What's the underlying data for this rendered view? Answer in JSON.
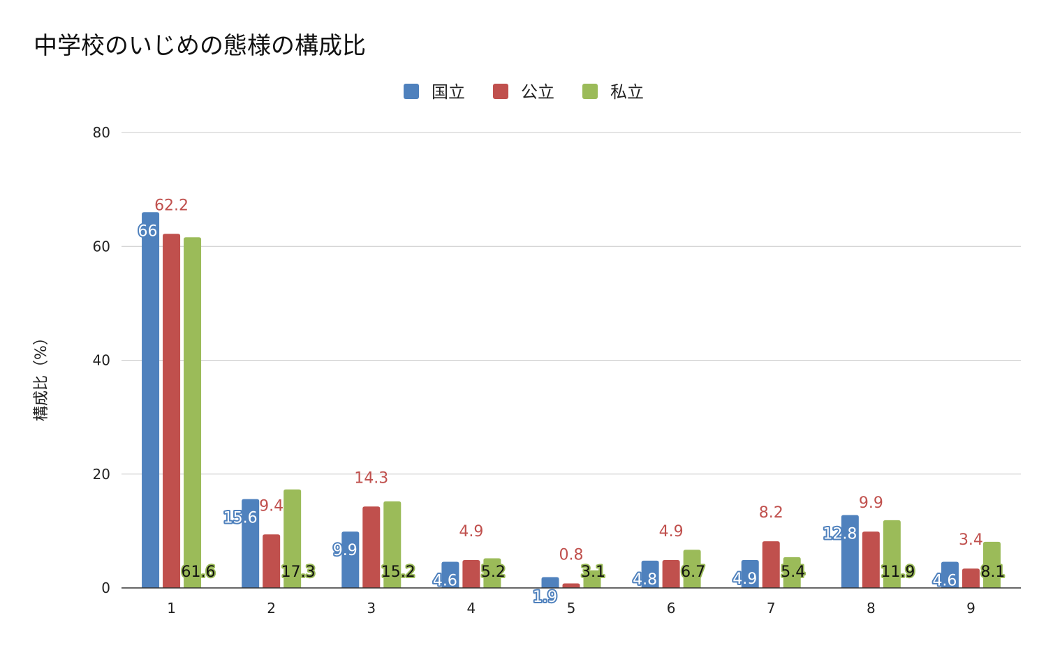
{
  "chart_data": {
    "type": "bar",
    "title": "中学校のいじめの態様の構成比",
    "xlabel": "",
    "ylabel": "構成比（%）",
    "ylim": [
      0,
      80
    ],
    "yticks": [
      0,
      20,
      40,
      60,
      80
    ],
    "grid": true,
    "legend_position": "top",
    "categories": [
      "1",
      "2",
      "3",
      "4",
      "5",
      "6",
      "7",
      "8",
      "9"
    ],
    "series": [
      {
        "name": "国立",
        "color": "#4f81bd",
        "values": [
          66,
          15.6,
          9.9,
          4.6,
          1.9,
          4.8,
          4.9,
          12.8,
          4.6
        ],
        "labels": [
          "66",
          "15.6",
          "9.9",
          "4.6",
          "1.9",
          "4.8",
          "4.9",
          "12.8",
          "4.6"
        ]
      },
      {
        "name": "公立",
        "color": "#c0504d",
        "values": [
          62.2,
          9.4,
          14.3,
          4.9,
          0.8,
          4.9,
          8.2,
          9.9,
          3.4
        ],
        "labels": [
          "62.2",
          "9.4",
          "14.3",
          "4.9",
          "0.8",
          "4.9",
          "8.2",
          "9.9",
          "3.4"
        ]
      },
      {
        "name": "私立",
        "color": "#9bbb59",
        "values": [
          61.6,
          17.3,
          15.2,
          5.2,
          3.1,
          6.7,
          5.4,
          11.9,
          8.1
        ],
        "labels": [
          "61.6",
          "17.3",
          "15.2",
          "5.2",
          "3.1",
          "6.7",
          "5.4",
          "11.9",
          "8.1"
        ]
      }
    ]
  }
}
